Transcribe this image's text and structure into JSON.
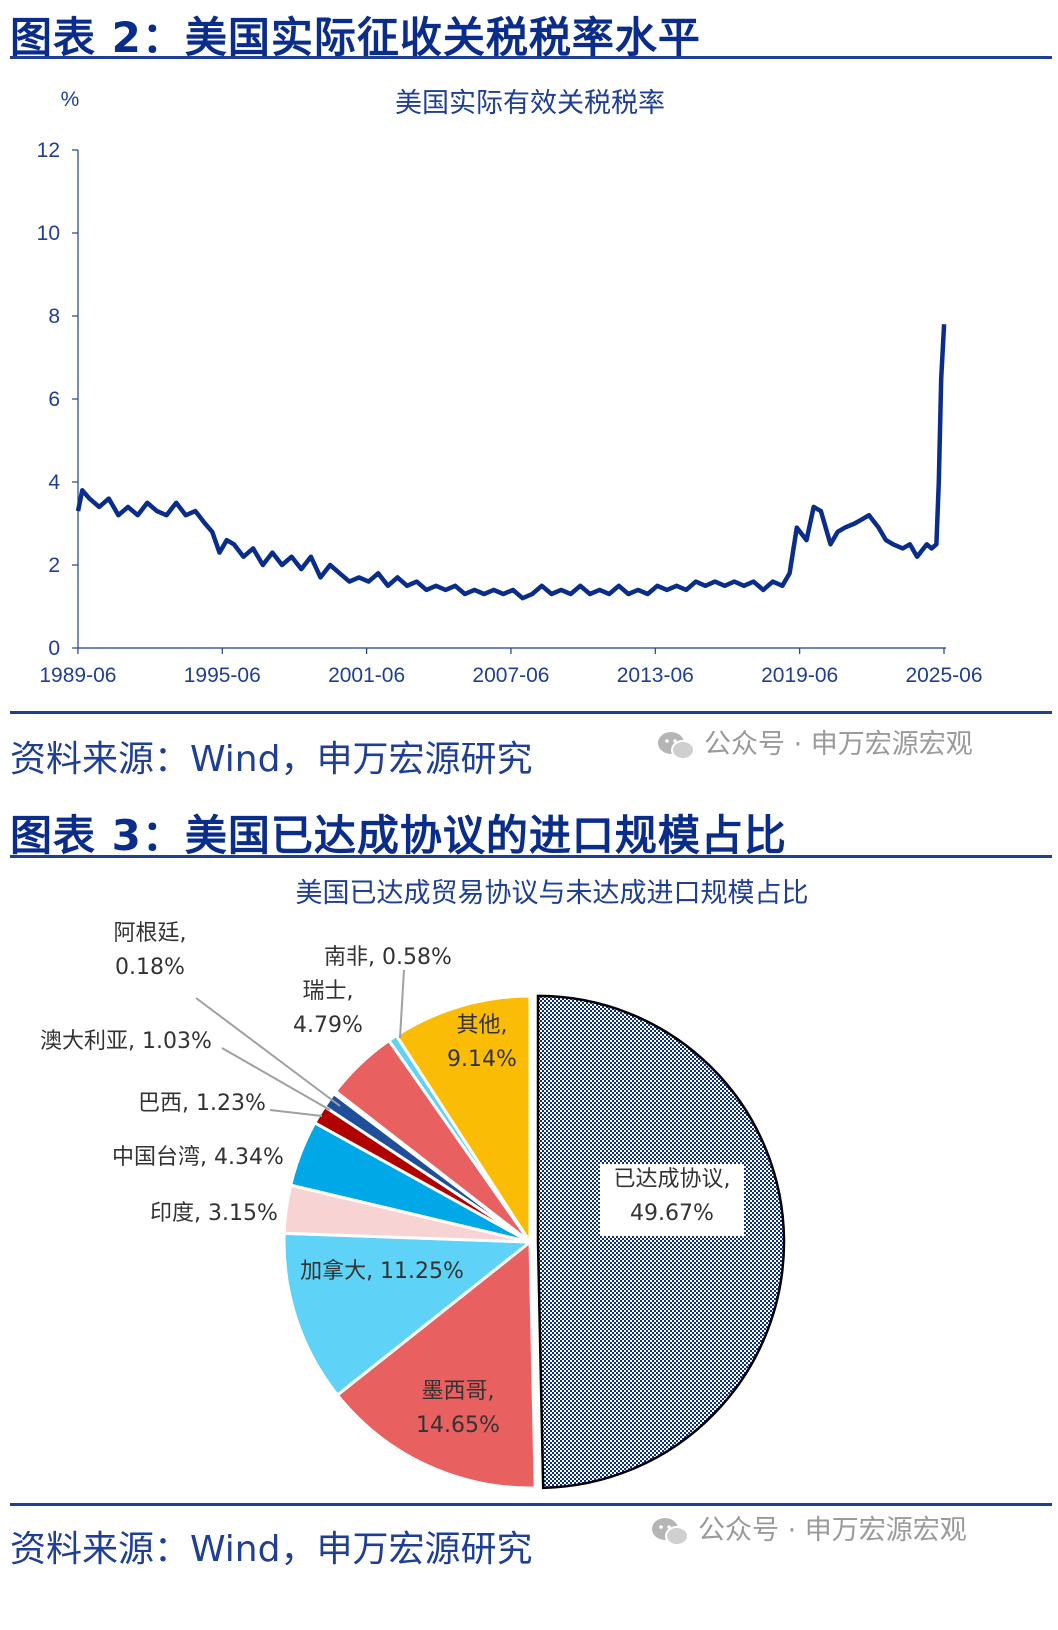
{
  "fig2": {
    "heading": "图表 2：美国实际征收关税税率水平",
    "source": "资料来源：Wind，申万宏源研究",
    "watermark": "公众号 · 申万宏源宏观"
  },
  "fig3": {
    "heading": "图表 3：美国已达成协议的进口规模占比",
    "source": "资料来源：Wind，申万宏源研究",
    "watermark": "公众号 · 申万宏源宏观"
  },
  "chart_data": [
    {
      "type": "line",
      "title": "美国实际有效关税税率",
      "ylabel": "%",
      "ylim": [
        0,
        12
      ],
      "yticks": [
        0,
        2,
        4,
        6,
        8,
        10,
        12
      ],
      "xlim": [
        1989.42,
        2025.5
      ],
      "xticks": [
        "1989-06",
        "1995-06",
        "2001-06",
        "2007-06",
        "2013-06",
        "2019-06",
        "2025-06"
      ],
      "color": "#0a2d8c",
      "series": [
        {
          "x": [
            1989.42,
            1989.6,
            1989.9,
            1990.3,
            1990.7,
            1991.1,
            1991.5,
            1991.9,
            1992.3,
            1992.7,
            1993.1,
            1993.5,
            1993.9,
            1994.3,
            1994.7,
            1995.0,
            1995.3,
            1995.6,
            1995.9,
            1996.3,
            1996.7,
            1997.1,
            1997.5,
            1997.9,
            1998.3,
            1998.7,
            1999.1,
            1999.5,
            1999.9,
            2000.3,
            2000.7,
            2001.1,
            2001.5,
            2001.9,
            2002.3,
            2002.7,
            2003.1,
            2003.5,
            2003.9,
            2004.3,
            2004.7,
            2005.1,
            2005.5,
            2005.9,
            2006.3,
            2006.7,
            2007.1,
            2007.5,
            2007.9,
            2008.3,
            2008.7,
            2009.1,
            2009.5,
            2009.9,
            2010.3,
            2010.7,
            2011.1,
            2011.5,
            2011.9,
            2012.3,
            2012.7,
            2013.1,
            2013.5,
            2013.9,
            2014.3,
            2014.7,
            2015.1,
            2015.5,
            2015.9,
            2016.3,
            2016.7,
            2017.1,
            2017.5,
            2017.9,
            2018.3,
            2018.7,
            2019.0,
            2019.3,
            2019.7,
            2020.0,
            2020.3,
            2020.7,
            2021.0,
            2021.3,
            2021.7,
            2022.0,
            2022.3,
            2022.7,
            2023.0,
            2023.3,
            2023.7,
            2024.0,
            2024.3,
            2024.7,
            2024.9,
            2025.1,
            2025.2,
            2025.3,
            2025.42
          ],
          "y": [
            3.3,
            3.8,
            3.6,
            3.4,
            3.6,
            3.2,
            3.4,
            3.2,
            3.5,
            3.3,
            3.2,
            3.5,
            3.2,
            3.3,
            3.0,
            2.8,
            2.3,
            2.6,
            2.5,
            2.2,
            2.4,
            2.0,
            2.3,
            2.0,
            2.2,
            1.9,
            2.2,
            1.7,
            2.0,
            1.8,
            1.6,
            1.7,
            1.6,
            1.8,
            1.5,
            1.7,
            1.5,
            1.6,
            1.4,
            1.5,
            1.4,
            1.5,
            1.3,
            1.4,
            1.3,
            1.4,
            1.3,
            1.4,
            1.2,
            1.3,
            1.5,
            1.3,
            1.4,
            1.3,
            1.5,
            1.3,
            1.4,
            1.3,
            1.5,
            1.3,
            1.4,
            1.3,
            1.5,
            1.4,
            1.5,
            1.4,
            1.6,
            1.5,
            1.6,
            1.5,
            1.6,
            1.5,
            1.6,
            1.4,
            1.6,
            1.5,
            1.8,
            2.9,
            2.6,
            3.4,
            3.3,
            2.5,
            2.8,
            2.9,
            3.0,
            3.1,
            3.2,
            2.9,
            2.6,
            2.5,
            2.4,
            2.5,
            2.2,
            2.5,
            2.4,
            2.5,
            4.0,
            6.5,
            7.8
          ]
        }
      ]
    },
    {
      "type": "pie",
      "title": "美国已达成贸易协议与未达成进口规模占比",
      "slices": [
        {
          "name": "已达成协议",
          "value": 49.67,
          "label": "49.67%",
          "color": "#0a2d8c"
        },
        {
          "name": "墨西哥",
          "value": 14.65,
          "label": "14.65%",
          "color": "#e86060"
        },
        {
          "name": "加拿大",
          "value": 11.25,
          "label": "11.25%",
          "color": "#5fd3f7"
        },
        {
          "name": "印度",
          "value": 3.15,
          "label": "3.15%",
          "color": "#f8d3d3"
        },
        {
          "name": "中国台湾",
          "value": 4.34,
          "label": "4.34%",
          "color": "#00a8e8"
        },
        {
          "name": "巴西",
          "value": 1.23,
          "label": "1.23%",
          "color": "#b00000"
        },
        {
          "name": "澳大利亚",
          "value": 1.03,
          "label": "1.03%",
          "color": "#1f4f9a"
        },
        {
          "name": "阿根廷",
          "value": 0.18,
          "label": "0.18%",
          "color": "#7a0c0c"
        },
        {
          "name": "瑞士",
          "value": 4.79,
          "label": "4.79%",
          "color": "#e86060"
        },
        {
          "name": "南非",
          "value": 0.58,
          "label": "0.58%",
          "color": "#5fd3f7"
        },
        {
          "name": "其他",
          "value": 9.14,
          "label": "9.14%",
          "color": "#fbbc05"
        }
      ]
    }
  ]
}
